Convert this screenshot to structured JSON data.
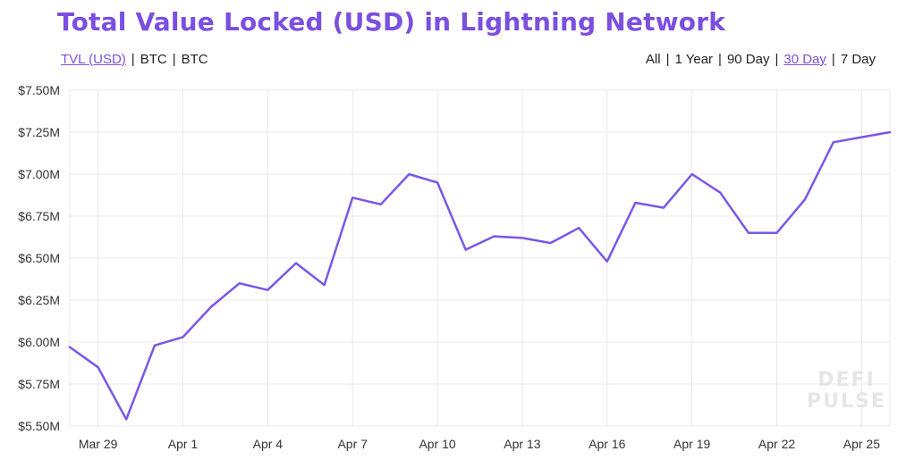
{
  "title": "Total Value Locked (USD) in Lightning Network",
  "currency_toggle": [
    {
      "label": "TVL (USD)",
      "active": true
    },
    {
      "label": "BTC",
      "active": false
    },
    {
      "label": "BTC",
      "active": false
    }
  ],
  "range_toggle": [
    {
      "label": "All",
      "active": false
    },
    {
      "label": "1 Year",
      "active": false
    },
    {
      "label": "90 Day",
      "active": false
    },
    {
      "label": "30 Day",
      "active": true
    },
    {
      "label": "7 Day",
      "active": false
    }
  ],
  "watermark": {
    "line1": "DEFI",
    "line2": "PULSE"
  },
  "colors": {
    "accent": "#7b4fe0",
    "line": "#7b56e8",
    "grid": "#e8e8e8"
  },
  "chart_data": {
    "type": "line",
    "title": "Total Value Locked (USD) in Lightning Network",
    "xlabel": "",
    "ylabel": "",
    "ylim": [
      5.5,
      7.5
    ],
    "y_unit": "M USD",
    "y_ticks": [
      7.5,
      7.25,
      7.0,
      6.75,
      6.5,
      6.25,
      6.0,
      5.75,
      5.5
    ],
    "y_tick_labels": [
      "$7.50M",
      "$7.25M",
      "$7.00M",
      "$6.75M",
      "$6.50M",
      "$6.25M",
      "$6.00M",
      "$5.75M",
      "$5.50M"
    ],
    "x_tick_labels": [
      "Mar 29",
      "Apr 1",
      "Apr 4",
      "Apr 7",
      "Apr 10",
      "Apr 13",
      "Apr 16",
      "Apr 19",
      "Apr 22",
      "Apr 25"
    ],
    "grid": true,
    "legend": "none",
    "series": [
      {
        "x": [
          "Mar 28",
          "Mar 29",
          "Mar 30",
          "Mar 31",
          "Apr 1",
          "Apr 2",
          "Apr 3",
          "Apr 4",
          "Apr 5",
          "Apr 6",
          "Apr 7",
          "Apr 8",
          "Apr 9",
          "Apr 10",
          "Apr 11",
          "Apr 12",
          "Apr 13",
          "Apr 14",
          "Apr 15",
          "Apr 16",
          "Apr 17",
          "Apr 18",
          "Apr 19",
          "Apr 20",
          "Apr 21",
          "Apr 22",
          "Apr 23",
          "Apr 24",
          "Apr 25",
          "Apr 26"
        ],
        "values": [
          5.97,
          5.85,
          5.54,
          5.98,
          6.03,
          6.21,
          6.35,
          6.31,
          6.47,
          6.34,
          6.86,
          6.82,
          7.0,
          6.95,
          6.55,
          6.63,
          6.62,
          6.59,
          6.68,
          6.48,
          6.83,
          6.8,
          7.0,
          6.89,
          6.65,
          6.65,
          6.85,
          7.19,
          7.22,
          7.25
        ]
      }
    ]
  }
}
